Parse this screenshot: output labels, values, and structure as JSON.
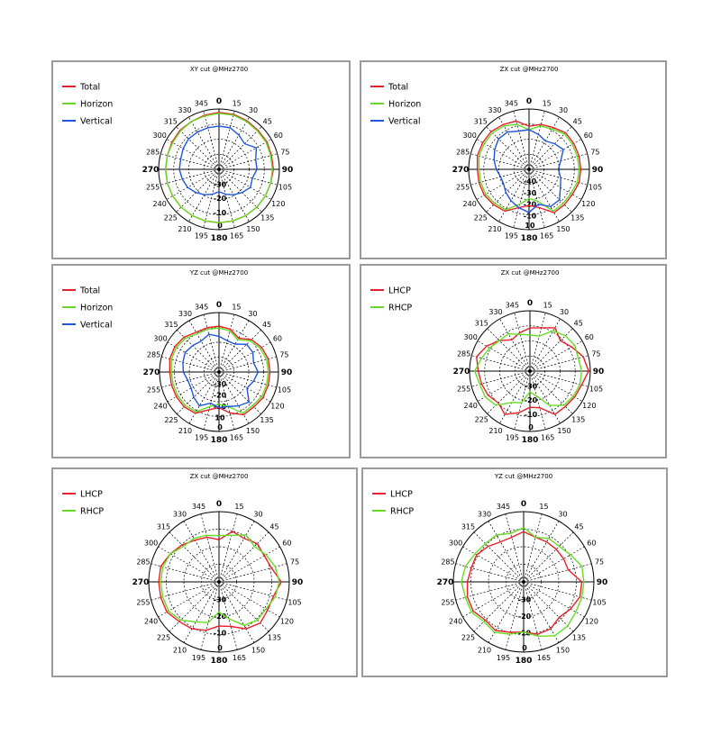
{
  "colors": {
    "Total": "#e8202a",
    "Horizon": "#66dd22",
    "Vertical": "#1f55dd",
    "LHCP": "#e8202a",
    "RHCP": "#66dd22"
  },
  "angle_labels": [
    "0",
    "15",
    "30",
    "45",
    "60",
    "75",
    "90",
    "105",
    "120",
    "135",
    "150",
    "165",
    "180",
    "195",
    "210",
    "225",
    "240",
    "255",
    "270",
    "285",
    "300",
    "315",
    "330",
    "345"
  ],
  "chart_data": [
    {
      "type": "polar",
      "title": "XY cut @MHz2700",
      "radial_labels": [
        "0",
        "-10",
        "-20",
        "-30"
      ],
      "series": [
        {
          "name": "Total",
          "values": [
            -2,
            -2,
            -2.5,
            -3,
            -3,
            -3.5,
            -3.5,
            -4,
            -4,
            -4,
            -4,
            -4,
            -4,
            -4,
            -4,
            -4,
            -4,
            -4,
            -4,
            -4,
            -3.5,
            -3,
            -3,
            -2.5
          ]
        },
        {
          "name": "Horizon",
          "values": [
            -2.5,
            -2.5,
            -3,
            -3.5,
            -3.5,
            -4,
            -4,
            -4,
            -4,
            -4,
            -4,
            -4,
            -4,
            -4,
            -4,
            -4,
            -4,
            -4,
            -4,
            -4,
            -4,
            -3.5,
            -3,
            -3
          ]
        },
        {
          "name": "Vertical",
          "values": [
            -10,
            -10,
            -12,
            -14,
            -10,
            -13,
            -13,
            -15,
            -14,
            -16,
            -18,
            -20,
            -22,
            -20,
            -18,
            -16,
            -14,
            -13,
            -12,
            -12,
            -11,
            -10,
            -10,
            -10
          ]
        }
      ]
    },
    {
      "type": "polar",
      "title": "ZX cut @MHz2700",
      "radial_labels": [
        "10",
        "-10",
        "-20",
        "-30",
        "-40"
      ],
      "series": [
        {
          "name": "Total",
          "values": [
            -10,
            -8,
            -7,
            -5,
            -5,
            -5,
            -5,
            -5,
            -6,
            -6,
            -6,
            -12,
            -14,
            -12,
            -7,
            -6,
            -5,
            -5,
            -5,
            -4,
            -4,
            -4,
            -5,
            -6
          ]
        },
        {
          "name": "Horizon",
          "values": [
            -12,
            -9,
            -8,
            -6,
            -6,
            -6,
            -6,
            -6,
            -7,
            -7,
            -7,
            -16,
            -18,
            -14,
            -8,
            -7,
            -6,
            -6,
            -6,
            -5,
            -5,
            -5,
            -6,
            -8
          ]
        },
        {
          "name": "Vertical",
          "values": [
            -12,
            -14,
            -16,
            -14,
            -12,
            -16,
            -18,
            -16,
            -14,
            -10,
            -10,
            -14,
            -10,
            -12,
            -14,
            -16,
            -18,
            -18,
            -16,
            -14,
            -12,
            -10,
            -10,
            -12
          ]
        }
      ]
    },
    {
      "type": "polar",
      "title": "YZ cut @MHz2700",
      "radial_labels": [
        "0",
        "10",
        "-10",
        "-20",
        "-30"
      ],
      "series": [
        {
          "name": "Total",
          "values": [
            -8,
            -9,
            -12,
            -8,
            -6,
            -5,
            -5,
            -5,
            -5,
            -6,
            -6,
            -10,
            -14,
            -12,
            -7,
            -6,
            -6,
            -6,
            -6,
            -5,
            -5,
            -6,
            -8,
            -8
          ]
        },
        {
          "name": "Horizon",
          "values": [
            -9,
            -10,
            -13,
            -9,
            -7,
            -6,
            -6,
            -6,
            -6,
            -7,
            -7,
            -14,
            -16,
            -14,
            -8,
            -7,
            -7,
            -7,
            -7,
            -6,
            -6,
            -7,
            -9,
            -9
          ]
        },
        {
          "name": "Vertical",
          "values": [
            -14,
            -16,
            -16,
            -12,
            -12,
            -14,
            -12,
            -14,
            -16,
            -10,
            -12,
            -14,
            -14,
            -16,
            -12,
            -14,
            -16,
            -16,
            -14,
            -13,
            -12,
            -13,
            -14,
            -12
          ]
        }
      ]
    },
    {
      "type": "polar",
      "title": "ZX cut @MHz2700",
      "radial_labels": [
        "0",
        "-10",
        "-20",
        "-30"
      ],
      "series": [
        {
          "name": "LHCP",
          "values": [
            -10,
            -9,
            -6,
            -10,
            -7,
            -3,
            -1,
            -4,
            -5,
            -6,
            -6,
            -13,
            -14,
            -10,
            -6,
            -9,
            -7,
            -6,
            -5,
            -3,
            -6,
            -10,
            -14,
            -12
          ]
        },
        {
          "name": "RHCP",
          "values": [
            -14,
            -14,
            -8,
            -6,
            -5,
            -6,
            -5,
            -5,
            -6,
            -7,
            -12,
            -20,
            -23,
            -16,
            -14,
            -7,
            -5,
            -5,
            -3,
            -6,
            -8,
            -10,
            -10,
            -13
          ]
        }
      ]
    },
    {
      "type": "polar",
      "title": "ZX cut @MHz2700",
      "radial_labels": [
        "0",
        "-10",
        "-20",
        "-30"
      ],
      "series": [
        {
          "name": "LHCP",
          "values": [
            -14,
            -9,
            -10,
            -8,
            -9,
            -8,
            -4,
            -7,
            -7,
            -6,
            -8,
            -12,
            -13,
            -10,
            -8,
            -7,
            -5,
            -5,
            -5,
            -5,
            -7,
            -9,
            -11,
            -12
          ]
        },
        {
          "name": "RHCP",
          "values": [
            -12,
            -11,
            -8,
            -10,
            -8,
            -6,
            -5,
            -6,
            -8,
            -8,
            -10,
            -16,
            -20,
            -14,
            -12,
            -8,
            -6,
            -6,
            -6,
            -6,
            -7,
            -10,
            -10,
            -11
          ]
        }
      ]
    },
    {
      "type": "polar",
      "title": "YZ cut @MHz2700",
      "radial_labels": [
        "0",
        "-10",
        "-20",
        "-30"
      ],
      "series": [
        {
          "name": "LHCP",
          "values": [
            -10,
            -12,
            -12,
            -12,
            -12,
            -12,
            -6,
            -6,
            -8,
            -10,
            -8,
            -8,
            -10,
            -9,
            -7,
            -8,
            -6,
            -6,
            -7,
            -8,
            -8,
            -10,
            -12,
            -12
          ]
        },
        {
          "name": "RHCP",
          "values": [
            -8,
            -12,
            -10,
            -10,
            -8,
            -5,
            -5,
            -5,
            -5,
            -4,
            -4,
            -7,
            -10,
            -8,
            -6,
            -7,
            -5,
            -5,
            -4,
            -5,
            -7,
            -8,
            -8,
            -10
          ]
        }
      ]
    }
  ]
}
